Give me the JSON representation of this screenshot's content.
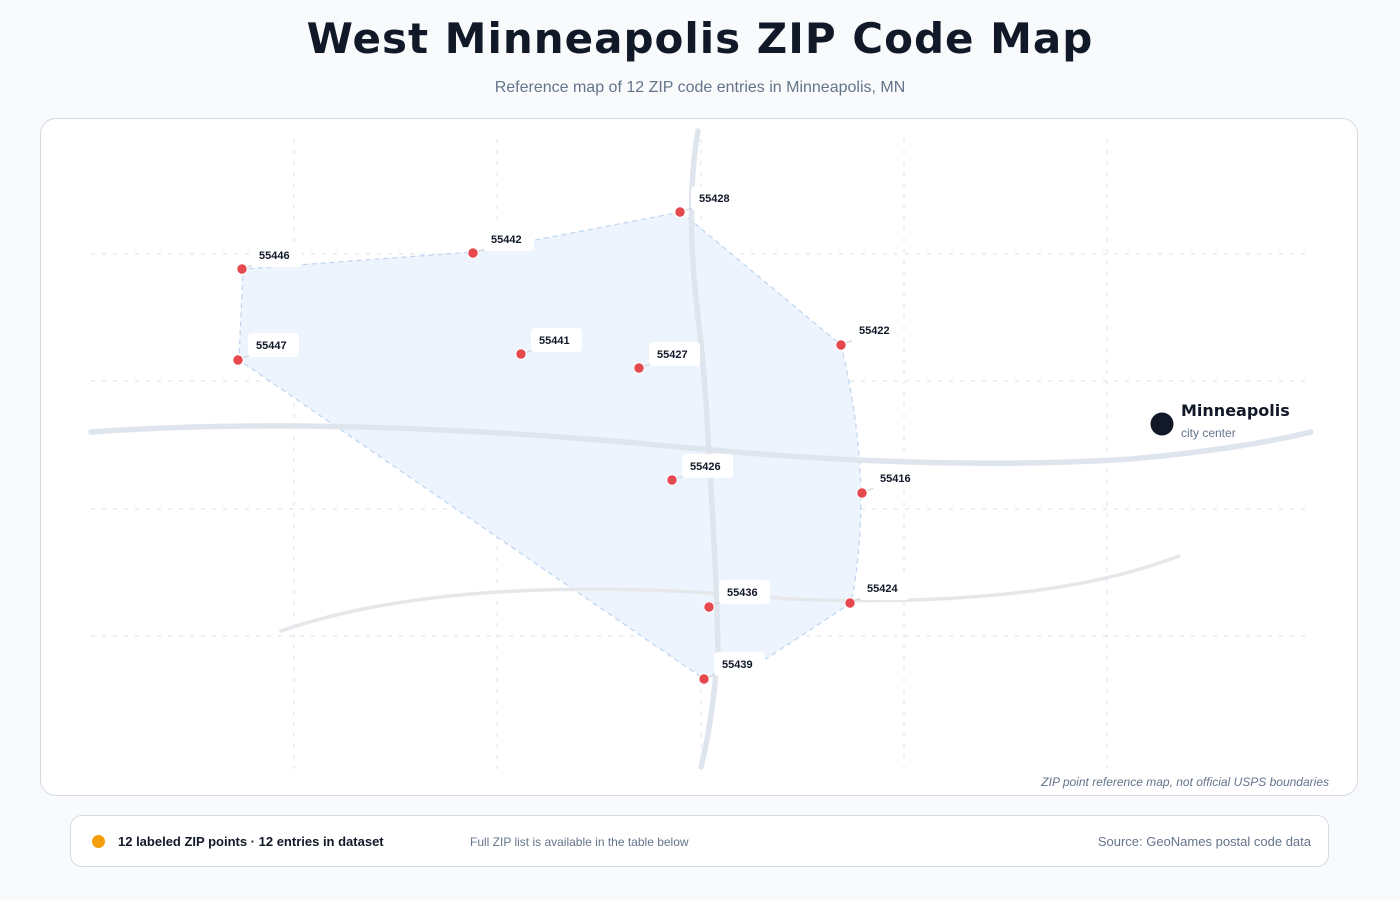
{
  "header": {
    "title": "West Minneapolis ZIP Code Map",
    "subtitle": "Reference map of 12 ZIP code entries in Minneapolis, MN"
  },
  "map": {
    "note": "ZIP point reference map, not official USPS boundaries",
    "marker_color": "#e5484d",
    "area_fill": "#eef4fd",
    "area_stroke": "#bcd4f2",
    "city": {
      "name": "Minneapolis",
      "subtitle": "city center"
    },
    "zip_points": [
      {
        "zip": "55428"
      },
      {
        "zip": "55442"
      },
      {
        "zip": "55446"
      },
      {
        "zip": "55447"
      },
      {
        "zip": "55441"
      },
      {
        "zip": "55427"
      },
      {
        "zip": "55422"
      },
      {
        "zip": "55426"
      },
      {
        "zip": "55416"
      },
      {
        "zip": "55436"
      },
      {
        "zip": "55424"
      },
      {
        "zip": "55439"
      }
    ]
  },
  "footer": {
    "legend_color": "#f59e0b",
    "legend_text": "12 labeled ZIP points · 12 entries in dataset",
    "hint": "Full ZIP list is available in the table below",
    "source": "Source: GeoNames postal code data"
  }
}
